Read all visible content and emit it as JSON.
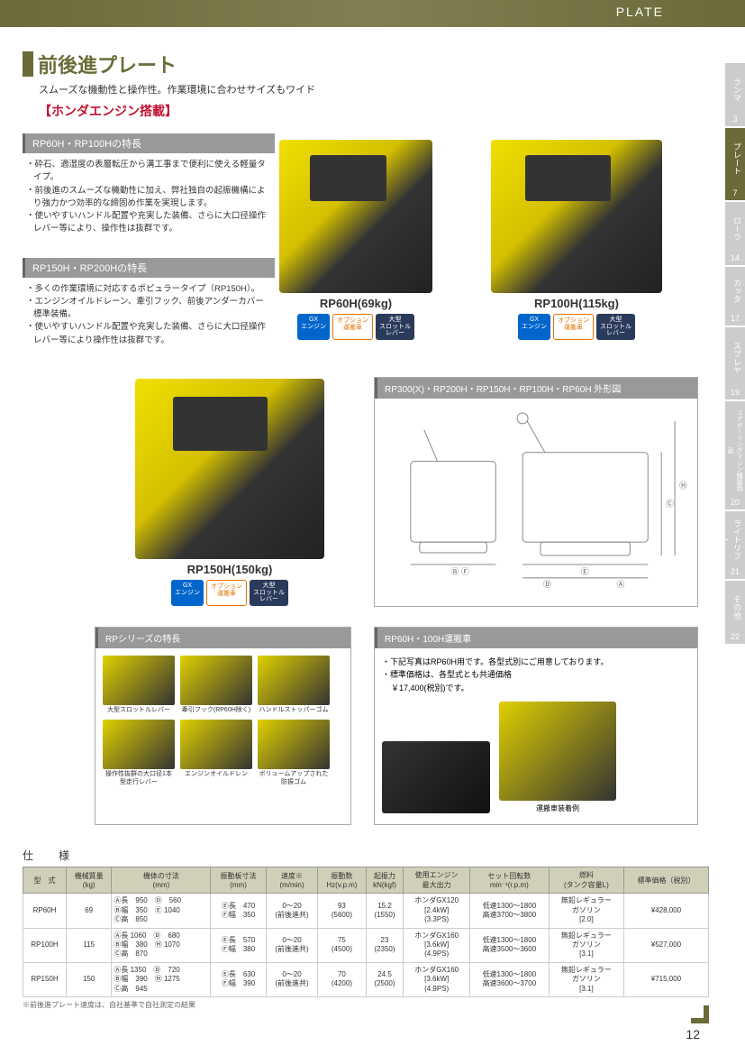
{
  "header": {
    "category": "PLATE"
  },
  "sideTabs": [
    {
      "label": "ランマ",
      "num": "3",
      "active": false
    },
    {
      "label": "プレート",
      "num": "7",
      "active": true
    },
    {
      "label": "ローラ",
      "num": "14",
      "active": false
    },
    {
      "label": "カッタ",
      "num": "17",
      "active": false
    },
    {
      "label": "スプレヤ",
      "num": "19",
      "active": false
    },
    {
      "label": "コアボーリングマシン舗装用品",
      "num": "20",
      "active": false
    },
    {
      "label": "ライトリフト",
      "num": "21",
      "active": false
    },
    {
      "label": "その他",
      "num": "22",
      "active": false
    }
  ],
  "title": {
    "main": "前後進プレート",
    "sub": "スムーズな機動性と操作性。作業環境に合わせサイズもワイド",
    "honda": "【ホンダエンジン搭載】"
  },
  "features60": {
    "header": "RP60H・RP100Hの特長",
    "items": [
      "・砕石、適湿度の表層転圧から溝工事まで便利に使える軽量タイプ。",
      "・前後進のスムーズな機動性に加え、弊社独自の起振機構により強力かつ効率的な締固め作業を実現します。",
      "・使いやすいハンドル配置や充実した装備、さらに大口径操作レバー等により、操作性は抜群です。"
    ]
  },
  "features150": {
    "header": "RP150H・RP200Hの特長",
    "items": [
      "・多くの作業環境に対応するポピュラータイプ（RP150H）。",
      "・エンジンオイルドレーン、牽引フック、前後アンダーカバー標準装備。",
      "・使いやすいハンドル配置や充実した装備、さらに大口径操作レバー等により操作性は抜群です。"
    ]
  },
  "products": {
    "rp60h": {
      "label": "RP60H(69kg)"
    },
    "rp100h": {
      "label": "RP100H(115kg)"
    },
    "rp150h": {
      "label": "RP150H(150kg)"
    }
  },
  "badges": {
    "gx": "GX\nエンジン",
    "option": "オプション\n運搬車",
    "throttle": "大型\nスロットル\nレバー"
  },
  "diagram": {
    "header": "RP300(X)・RP200H・RP150H・RP100H・RP60H 外形図"
  },
  "rpFeatures": {
    "header": "RPシリーズの特長",
    "captions": [
      "大型スロットルレバー",
      "牽引フック(RP60H除く)",
      "ハンドルストッパーゴム",
      "操作性抜群の大口径1本型走行レバー",
      "エンジンオイルドレン",
      "ボリュームアップされた防振ゴム"
    ]
  },
  "transport": {
    "header": "RP60H・100H運搬車",
    "text1": "・下記写真はRP60H用です。各型式別にご用意しております。",
    "text2": "・標準価格は、各型式とも共通価格",
    "price": "￥17,400(税別)です。",
    "caption": "運搬車装着例"
  },
  "spec": {
    "title": "仕　様",
    "note": "※前後進プレート速度は、自社基準で自社測定の結果",
    "headers": [
      "型　式",
      "機械質量\n(kg)",
      "機体の寸法\n(mm)",
      "振動板寸法\n(mm)",
      "速度※\n(m/min)",
      "振動数\nHz(v.p.m)",
      "起振力\nkN(kgf)",
      "使用エンジン\n最大出力",
      "セット回転数\nmin⁻¹(r.p.m)",
      "燃料\n(タンク容量L)",
      "標準価格（税別）"
    ],
    "rows": [
      {
        "model": "RP60H",
        "mass": "69",
        "dims": "Ⓐ長　950　Ⓓ　560\nⒷ幅　350　Ⓔ 1040\nⒸ高　850",
        "plate": "Ⓔ長　470\nⒻ幅　350",
        "speed": "0～20\n(前後進共)",
        "freq": "93\n(5600)",
        "force": "15.2\n(1550)",
        "engine": "ホンダGX120\n[2.4kW]\n(3.3PS)",
        "rpm": "低速1300～1800\n高速3700～3800",
        "fuel": "無鉛レギュラー\nガソリン\n[2.0]",
        "price": "¥428,000"
      },
      {
        "model": "RP100H",
        "mass": "115",
        "dims": "Ⓐ長 1060　Ⓓ　680\nⒷ幅　380　Ⓗ 1070\nⒸ高　870",
        "plate": "Ⓔ長　570\nⒻ幅　380",
        "speed": "0～20\n(前後進共)",
        "freq": "75\n(4500)",
        "force": "23\n(2350)",
        "engine": "ホンダGX160\n[3.6kW]\n(4.9PS)",
        "rpm": "低速1300～1800\n高速3500～3600",
        "fuel": "無鉛レギュラー\nガソリン\n[3.1]",
        "price": "¥527,000"
      },
      {
        "model": "RP150H",
        "mass": "150",
        "dims": "Ⓐ長 1350　Ⓓ　720\nⒷ幅　390　Ⓗ 1275\nⒸ高　945",
        "plate": "Ⓔ長　630\nⒻ幅　390",
        "speed": "0～20\n(前後進共)",
        "freq": "70\n(4200)",
        "force": "24.5\n(2500)",
        "engine": "ホンダGX160\n[3.6kW]\n(4.9PS)",
        "rpm": "低速1300～1800\n高速3600～3700",
        "fuel": "無鉛レギュラー\nガソリン\n[3.1]",
        "price": "¥715,000"
      }
    ]
  },
  "pageNum": "12"
}
